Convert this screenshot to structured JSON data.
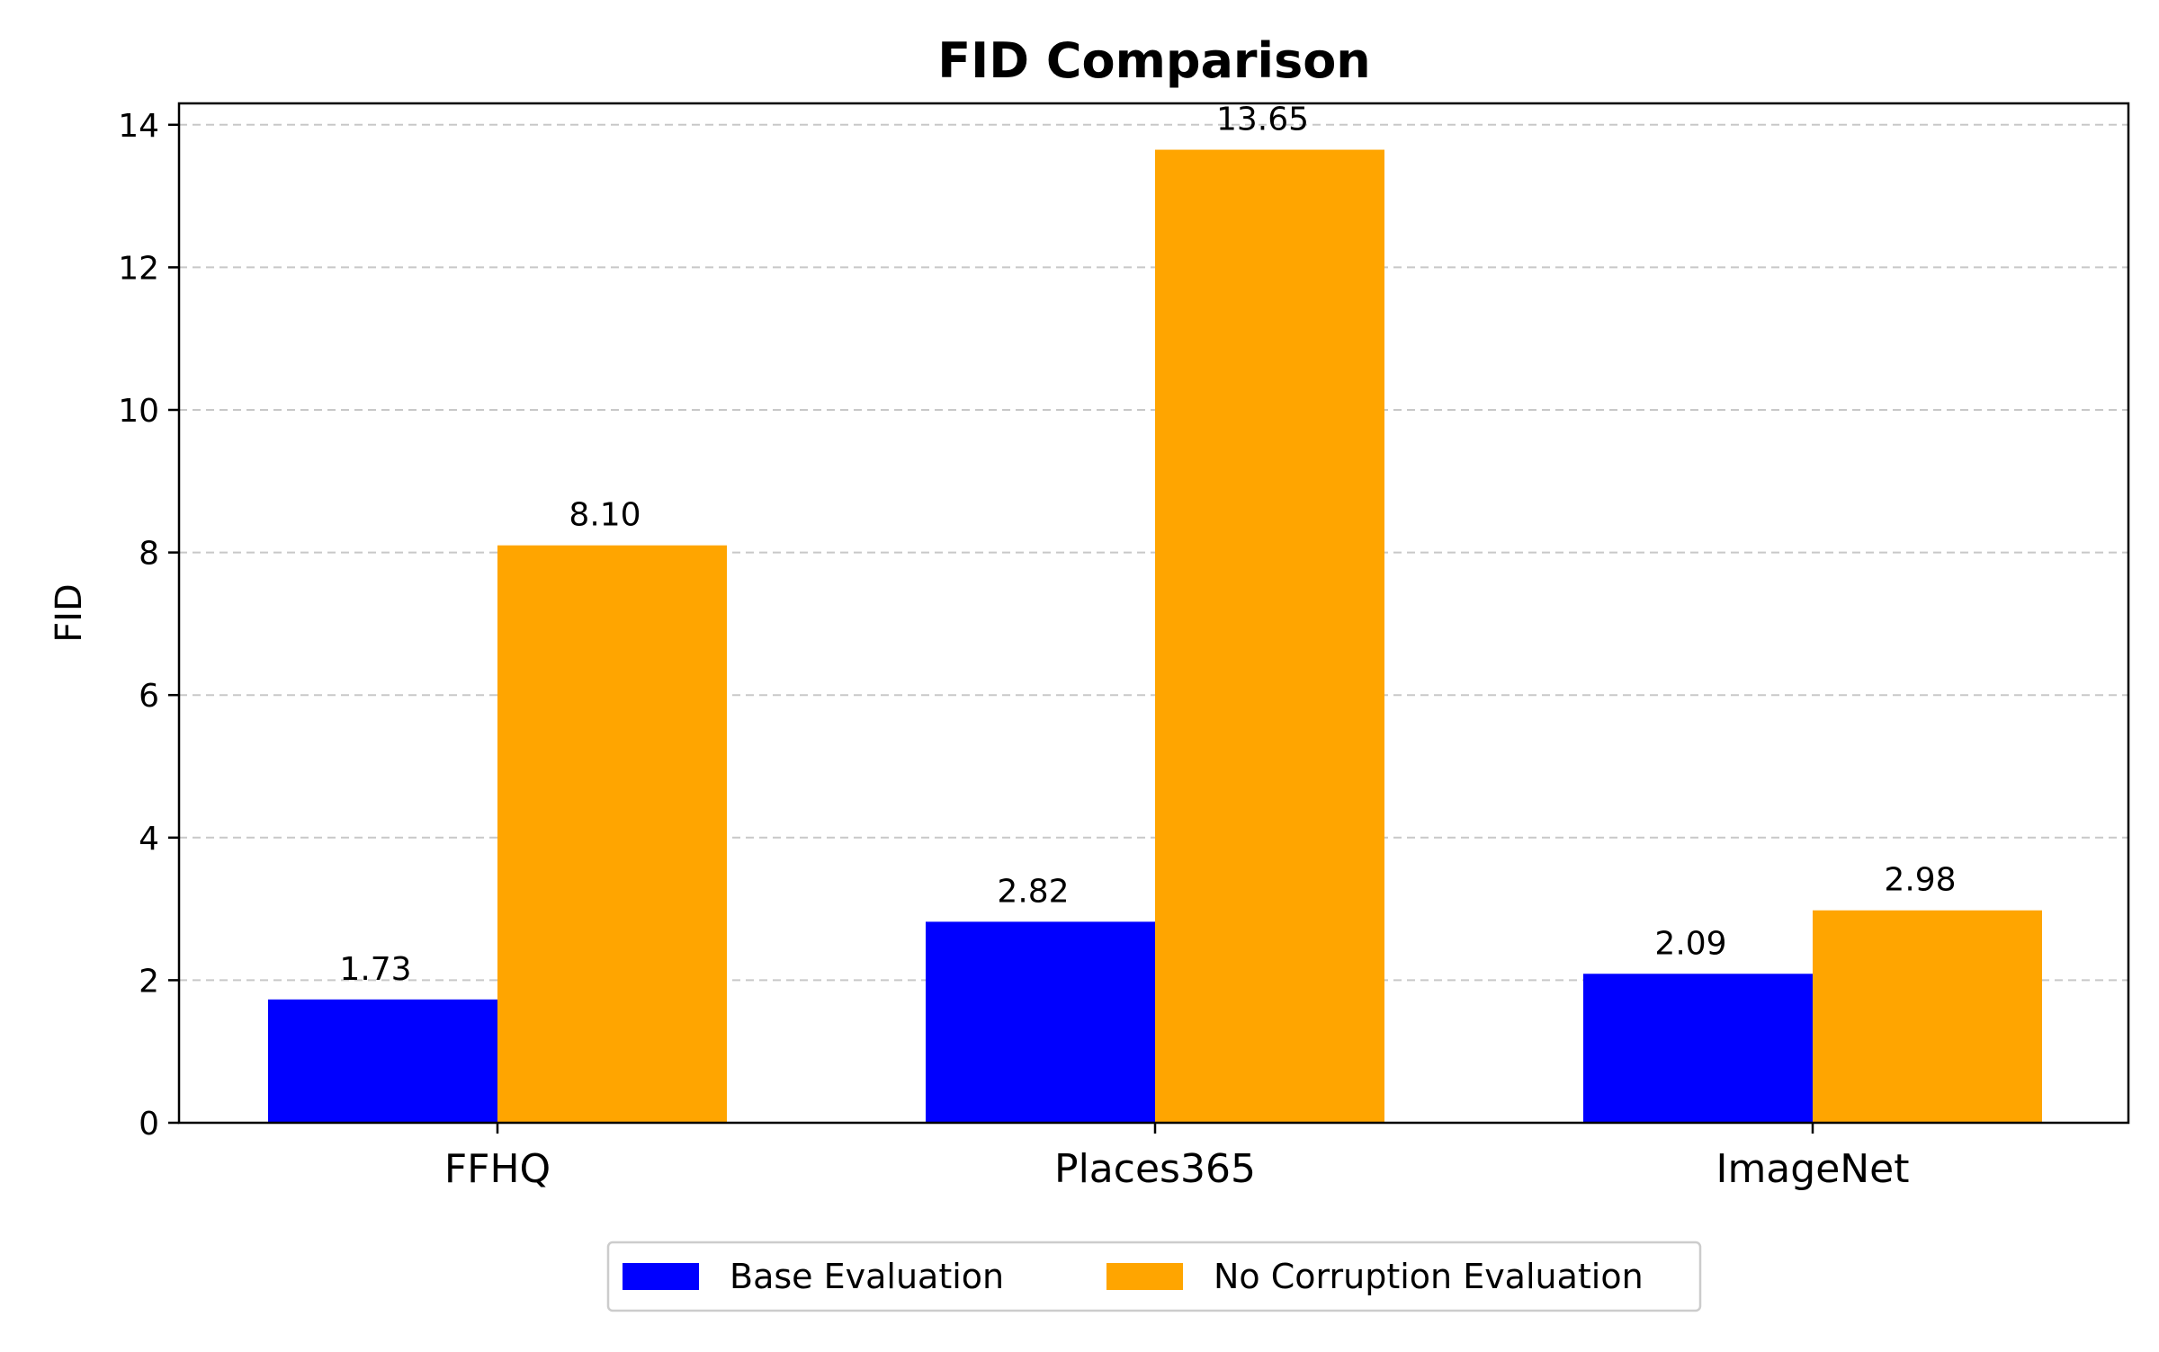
{
  "chart_data": {
    "type": "bar",
    "title": "FID Comparison",
    "xlabel": "",
    "ylabel": "FID",
    "categories": [
      "FFHQ",
      "Places365",
      "ImageNet"
    ],
    "series": [
      {
        "name": "Base Evaluation",
        "color": "#0000ff",
        "values": [
          1.73,
          2.82,
          2.09
        ],
        "labels": [
          "1.73",
          "2.82",
          "2.09"
        ]
      },
      {
        "name": "No Corruption Evaluation",
        "color": "#ffa500",
        "values": [
          8.1,
          13.65,
          2.98
        ],
        "labels": [
          "8.10",
          "13.65",
          "2.98"
        ]
      }
    ],
    "ylim": [
      0,
      14.3
    ],
    "yticks": [
      0,
      2,
      4,
      6,
      8,
      10,
      12,
      14
    ],
    "grid": true,
    "legend_position": "bottom-center"
  }
}
